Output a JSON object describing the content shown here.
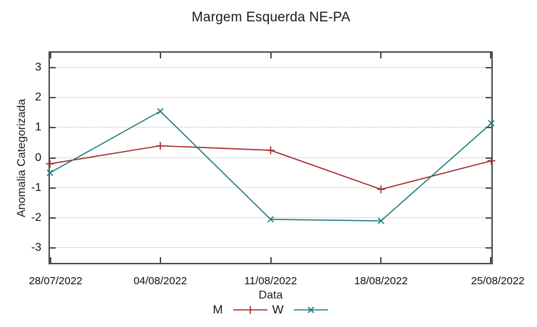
{
  "chart_data": {
    "type": "line",
    "title": "Margem Esquerda NE-PA",
    "xlabel": "Data",
    "ylabel": "Anomalia Categorizada",
    "categories": [
      "28/07/2022",
      "04/08/2022",
      "11/08/2022",
      "18/08/2022",
      "25/08/2022"
    ],
    "y_ticks": [
      "3",
      "2",
      "1",
      "0",
      "-1",
      "-2",
      "-3"
    ],
    "ylim": [
      -3.5,
      3.5
    ],
    "grid": "horizontal-dotted",
    "legend_position": "bottom-center",
    "series": [
      {
        "name": "M",
        "marker": "plus",
        "color": "#a02828",
        "values": [
          -0.2,
          0.4,
          0.25,
          -1.05,
          -0.1
        ]
      },
      {
        "name": "W",
        "marker": "cross",
        "color": "#1f7c7c",
        "values": [
          -0.5,
          1.55,
          -2.05,
          -2.1,
          1.15
        ]
      }
    ],
    "colors": {
      "border": "#4d4d4d",
      "grid": "#b9b9b9",
      "text": "#111111",
      "background": "#ffffff"
    }
  }
}
